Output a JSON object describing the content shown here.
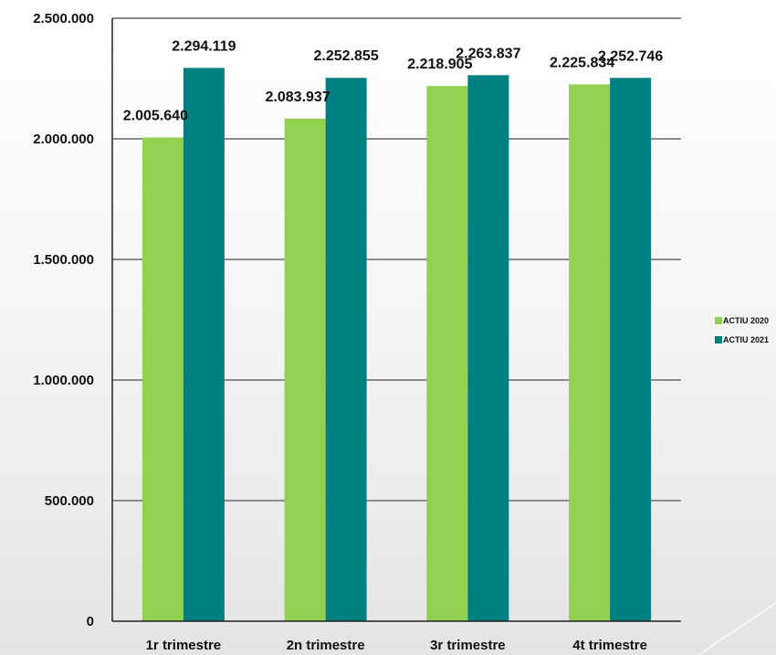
{
  "chart_data": {
    "type": "bar",
    "categories": [
      "1r trimestre",
      "2n trimestre",
      "3r trimestre",
      "4t trimestre"
    ],
    "series": [
      {
        "name": "ACTIU 2020",
        "color": "#92d050",
        "values": [
          2005640,
          2083937,
          2218905,
          2225834
        ],
        "labels": [
          "2.005.640",
          "2.083.937",
          "2.218.905",
          "2.225.834"
        ]
      },
      {
        "name": "ACTIU 2021",
        "color": "#008080",
        "values": [
          2294119,
          2252855,
          2263837,
          2252746
        ],
        "labels": [
          "2.294.119",
          "2.252.855",
          "2.263.837",
          "2.252.746"
        ]
      }
    ],
    "ylim": [
      0,
      2500000
    ],
    "yticks": [
      0,
      500000,
      1000000,
      1500000,
      2000000,
      2500000
    ],
    "ytick_labels": [
      "0",
      "500.000",
      "1.000.000",
      "1.500.000",
      "2.000.000",
      "2.500.000"
    ],
    "grid": true,
    "legend_position": "right",
    "title": "",
    "xlabel": "",
    "ylabel": ""
  }
}
